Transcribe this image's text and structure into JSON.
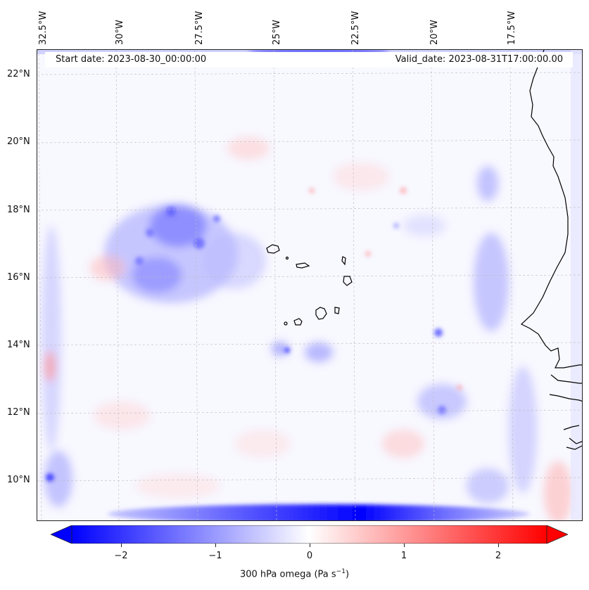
{
  "map": {
    "start_date": "Start date: 2023-08-30_00:00:00",
    "valid_date": "Valid_date: 2023-08-31T17:00:00.00",
    "lon_labels": [
      "32.5°W",
      "30°W",
      "27.5°W",
      "25°W",
      "22.5°W",
      "20°W",
      "17.5°W"
    ],
    "lat_labels": [
      "22°N",
      "20°N",
      "18°N",
      "16°N",
      "14°N",
      "12°N",
      "10°N"
    ],
    "variable": "300 hPa omega (Pa s",
    "variable_exp": "−1",
    "variable_close": ")",
    "colormap": "bwr",
    "colors": {
      "negative": "#0000ff",
      "zero": "#ffffff",
      "positive": "#ff0000",
      "coastline": "#000000"
    },
    "colorbar": {
      "ticks": [
        "−2",
        "−1",
        "0",
        "1",
        "2"
      ],
      "tick_values": [
        -2,
        -1,
        0,
        1,
        2
      ],
      "range": [
        -2.5,
        2.5
      ],
      "extend": "both"
    }
  }
}
